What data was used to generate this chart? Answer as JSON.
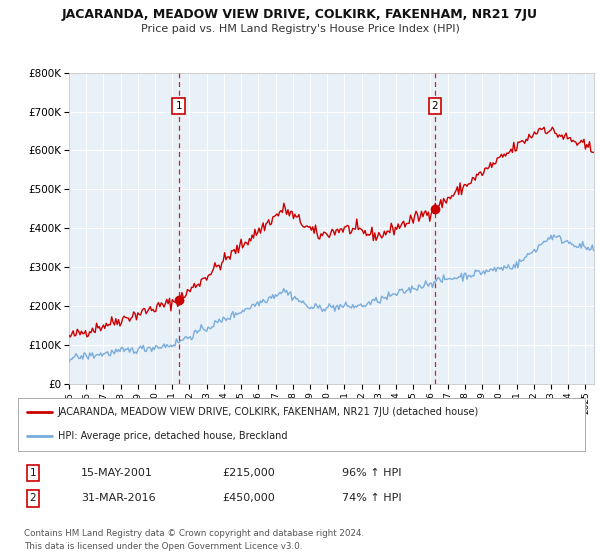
{
  "title": "JACARANDA, MEADOW VIEW DRIVE, COLKIRK, FAKENHAM, NR21 7JU",
  "subtitle": "Price paid vs. HM Land Registry's House Price Index (HPI)",
  "red_label": "JACARANDA, MEADOW VIEW DRIVE, COLKIRK, FAKENHAM, NR21 7JU (detached house)",
  "blue_label": "HPI: Average price, detached house, Breckland",
  "annotation1_date": "15-MAY-2001",
  "annotation1_price": "£215,000",
  "annotation1_hpi": "96% ↑ HPI",
  "annotation2_date": "31-MAR-2016",
  "annotation2_price": "£450,000",
  "annotation2_hpi": "74% ↑ HPI",
  "footer1": "Contains HM Land Registry data © Crown copyright and database right 2024.",
  "footer2": "This data is licensed under the Open Government Licence v3.0.",
  "ylim": [
    0,
    800000
  ],
  "yticks": [
    0,
    100000,
    200000,
    300000,
    400000,
    500000,
    600000,
    700000,
    800000
  ],
  "ytick_labels": [
    "£0",
    "£100K",
    "£200K",
    "£300K",
    "£400K",
    "£500K",
    "£600K",
    "£700K",
    "£800K"
  ],
  "xmin": 1995.0,
  "xmax": 2025.5,
  "sale1_x": 2001.37,
  "sale1_y": 215000,
  "sale2_x": 2016.25,
  "sale2_y": 450000,
  "vline1_x": 2001.37,
  "vline2_x": 2016.25,
  "red_color": "#cc0000",
  "blue_color": "#7aacdc",
  "chart_bg": "#e8f0f8",
  "number_box_1": "1",
  "number_box_2": "2"
}
